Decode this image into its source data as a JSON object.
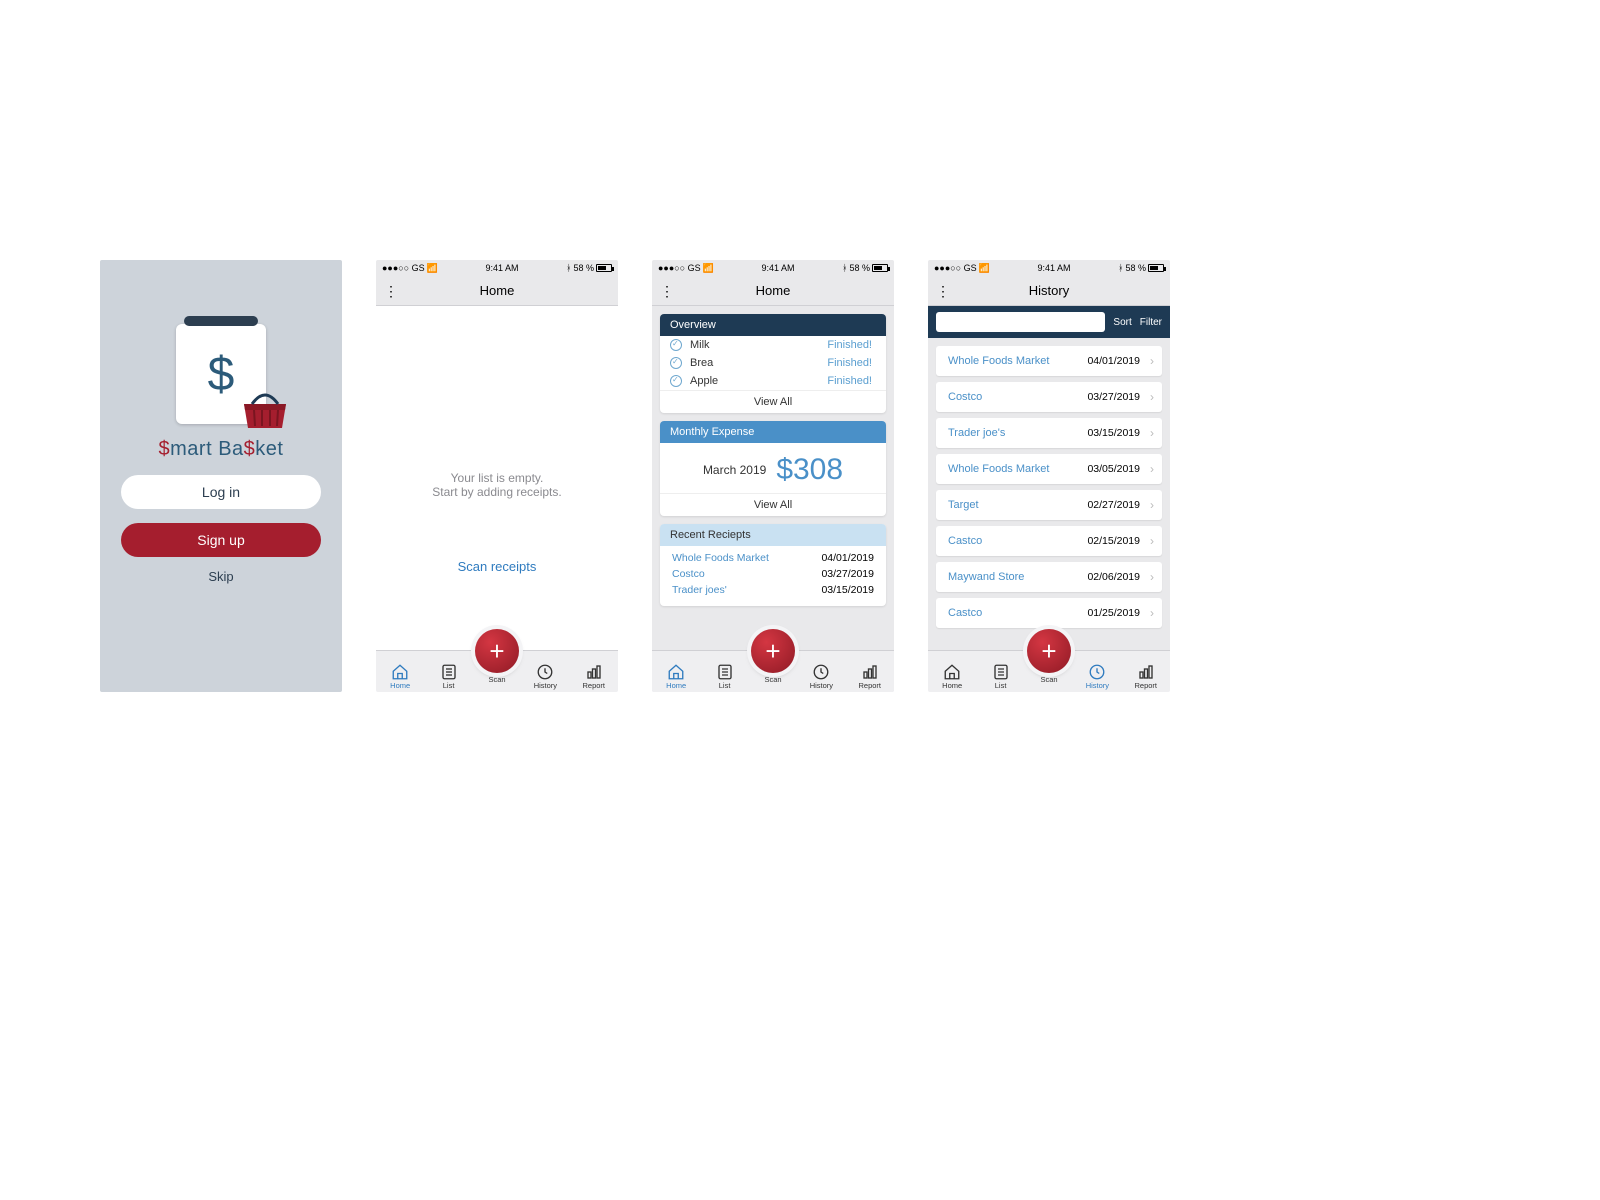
{
  "colors": {
    "red": "#a51e2e",
    "blue": "#4a90c8",
    "darknavy": "#1e3a54",
    "lightblue": "#c9e1f2",
    "splashbg": "#cdd3da",
    "text": "#2c3e50",
    "linkblue": "#2f7bbf"
  },
  "statusbar": {
    "carrier": "●●●○○ GS",
    "wifi": "✶",
    "time": "9:41 AM",
    "bt": "✻",
    "batt": "58 %"
  },
  "splash": {
    "appname_pre": "",
    "s1": "$",
    "mid": "mart Ba",
    "s2": "$",
    "post": "ket",
    "login": "Log in",
    "signup": "Sign up",
    "skip": "Skip"
  },
  "tabs": {
    "home": "Home",
    "list": "List",
    "scan": "Scan",
    "history": "History",
    "report": "Report"
  },
  "screen2": {
    "title": "Home",
    "empty1": "Your list is empty.",
    "empty2": "Start by adding receipts.",
    "scan": "Scan receipts"
  },
  "screen3": {
    "title": "Home",
    "overview_head": "Overview",
    "items": [
      {
        "label": "Milk",
        "status": "Finished!"
      },
      {
        "label": "Brea",
        "status": "Finished!"
      },
      {
        "label": "Apple",
        "status": "Finished!"
      }
    ],
    "viewall": "View All",
    "expense_head": "Monthly Expense",
    "month": "March 2019",
    "amount": "$308",
    "recent_head": "Recent Reciepts",
    "recents": [
      {
        "store": "Whole Foods Market",
        "date": "04/01/2019"
      },
      {
        "store": "Costco",
        "date": "03/27/2019"
      },
      {
        "store": "Trader joes'",
        "date": "03/15/2019"
      }
    ]
  },
  "screen4": {
    "title": "History",
    "sort": "Sort",
    "filter": "Filter",
    "items": [
      {
        "store": "Whole Foods Market",
        "date": "04/01/2019"
      },
      {
        "store": "Costco",
        "date": "03/27/2019"
      },
      {
        "store": "Trader joe's",
        "date": "03/15/2019"
      },
      {
        "store": "Whole Foods Market",
        "date": "03/05/2019"
      },
      {
        "store": "Target",
        "date": "02/27/2019"
      },
      {
        "store": "Castco",
        "date": "02/15/2019"
      },
      {
        "store": "Maywand Store",
        "date": "02/06/2019"
      },
      {
        "store": "Castco",
        "date": "01/25/2019"
      }
    ]
  }
}
